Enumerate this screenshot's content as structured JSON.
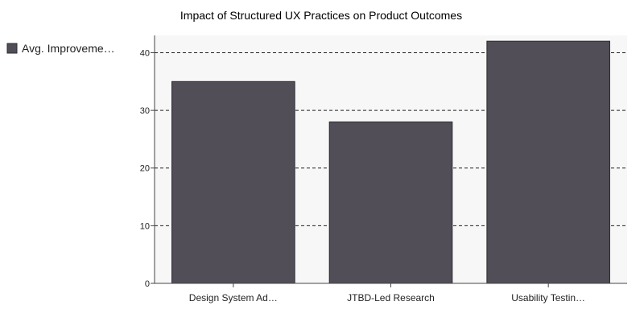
{
  "chart_data": {
    "type": "bar",
    "title": "Impact of Structured UX Practices on Product Outcomes",
    "categories": [
      "Design System Ad…",
      "JTBD-Led Research",
      "Usability Testin…"
    ],
    "series": [
      {
        "name": "Avg. Improveme…",
        "values": [
          35,
          28,
          42
        ],
        "color": "#524e58"
      }
    ],
    "yticks": [
      0,
      10,
      20,
      30,
      40
    ],
    "ylim": [
      0,
      43
    ],
    "grid": true,
    "legend_position": "left",
    "plot_background": "#f7f7f7",
    "bar_stroke": "#2b2930"
  }
}
